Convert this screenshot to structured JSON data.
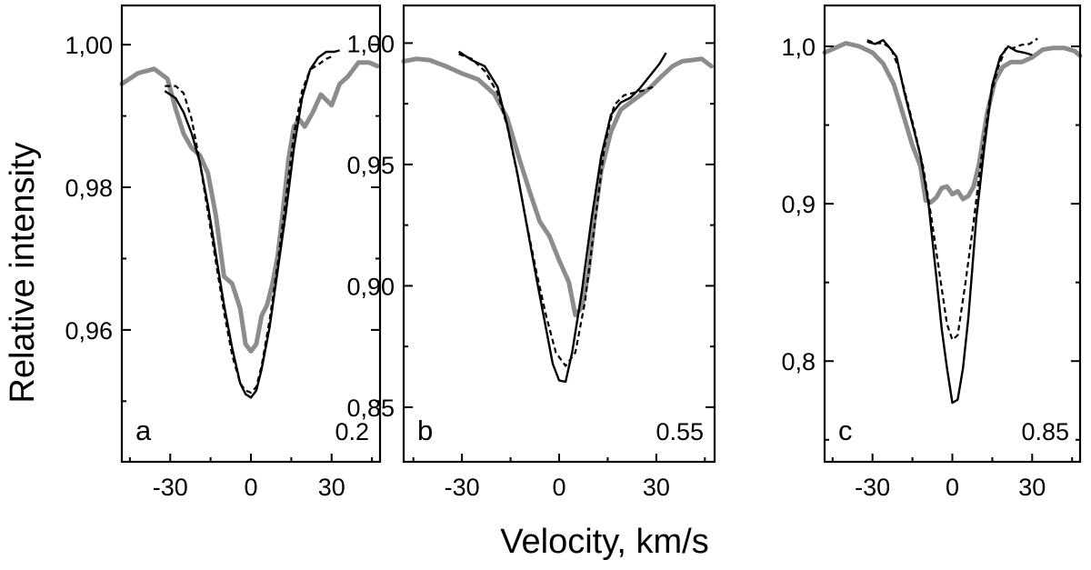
{
  "ylabel": "Relative intensity",
  "xlabel": "Velocity, km/s",
  "chart_data": [
    {
      "type": "line",
      "panel": "a",
      "phase": "0.2",
      "xlim": [
        -48,
        48
      ],
      "ylim": [
        0.9415,
        1.0055
      ],
      "xticks": [
        -30,
        0,
        30
      ],
      "xtick_labels": [
        "-30",
        "0",
        "30"
      ],
      "yticks": [
        0.96,
        0.98,
        1.0
      ],
      "ytick_labels": [
        "0,96",
        "0,98",
        "1,00"
      ],
      "yticks_minor": [
        0.95,
        0.97,
        0.99
      ],
      "series": [
        {
          "style": "gray-thick",
          "x": [
            -48,
            -42,
            -36,
            -31,
            -28,
            -25,
            -22,
            -19,
            -16,
            -13,
            -10,
            -7,
            -4,
            -2,
            0,
            2,
            4,
            6,
            8,
            10,
            12,
            14,
            16,
            18,
            20,
            23,
            26,
            30,
            33,
            36,
            40,
            44,
            47
          ],
          "y": [
            0.9945,
            0.996,
            0.9966,
            0.9952,
            0.991,
            0.9875,
            0.9855,
            0.9845,
            0.982,
            0.976,
            0.9675,
            0.9665,
            0.963,
            0.958,
            0.957,
            0.958,
            0.962,
            0.9635,
            0.9665,
            0.9705,
            0.977,
            0.984,
            0.9885,
            0.9895,
            0.9885,
            0.9905,
            0.993,
            0.9915,
            0.9945,
            0.9955,
            0.9975,
            0.9975,
            0.997
          ]
        },
        {
          "style": "black-solid",
          "x": [
            -32,
            -28,
            -25,
            -22,
            -19,
            -16,
            -13,
            -10,
            -7,
            -4,
            -2,
            0,
            2,
            4,
            7,
            10,
            13,
            16,
            19,
            22,
            25,
            28,
            31,
            33
          ],
          "y": [
            0.9935,
            0.9925,
            0.9905,
            0.9875,
            0.9835,
            0.9775,
            0.9705,
            0.9635,
            0.9575,
            0.9525,
            0.951,
            0.9505,
            0.9515,
            0.9545,
            0.9605,
            0.9685,
            0.9765,
            0.9855,
            0.9925,
            0.9965,
            0.9982,
            0.999,
            0.999,
            0.9992
          ]
        },
        {
          "style": "black-dashed",
          "x": [
            -32,
            -28,
            -25,
            -22,
            -19,
            -16,
            -13,
            -10,
            -7,
            -4,
            -2,
            0,
            2,
            4,
            7,
            10,
            13,
            16,
            19,
            22,
            25,
            28,
            31
          ],
          "y": [
            0.9942,
            0.9942,
            0.9932,
            0.9895,
            0.9835,
            0.9765,
            0.9695,
            0.9625,
            0.9565,
            0.9525,
            0.9515,
            0.9512,
            0.952,
            0.955,
            0.9615,
            0.9695,
            0.9785,
            0.9875,
            0.9935,
            0.9965,
            0.9972,
            0.998,
            0.9985
          ]
        }
      ]
    },
    {
      "type": "line",
      "panel": "b",
      "phase": "0.55",
      "xlim": [
        -48,
        48
      ],
      "ylim": [
        0.8275,
        1.0155
      ],
      "xticks": [
        -30,
        0,
        30
      ],
      "xtick_labels": [
        "-30",
        "0",
        "30"
      ],
      "yticks": [
        0.85,
        0.9,
        0.95,
        1.0
      ],
      "ytick_labels": [
        "0,85",
        "0,90",
        "0,95",
        "1,00"
      ],
      "yticks_minor": [
        0.875,
        0.925,
        0.975
      ],
      "series": [
        {
          "style": "gray-thick",
          "x": [
            -48,
            -44,
            -40,
            -35,
            -30,
            -25,
            -20,
            -16,
            -12,
            -9,
            -6,
            -3,
            0,
            3,
            5,
            7,
            9,
            11,
            13,
            16,
            19,
            22,
            25,
            28,
            31,
            35,
            38,
            41,
            44,
            47
          ],
          "y": [
            0.9925,
            0.9935,
            0.993,
            0.9905,
            0.9875,
            0.985,
            0.979,
            0.969,
            0.951,
            0.9385,
            0.9265,
            0.9205,
            0.9105,
            0.9015,
            0.888,
            0.891,
            0.9055,
            0.9285,
            0.9475,
            0.9635,
            0.9725,
            0.9755,
            0.9785,
            0.9815,
            0.9855,
            0.9905,
            0.9925,
            0.993,
            0.9935,
            0.9905
          ]
        },
        {
          "style": "black-solid",
          "x": [
            -31,
            -27,
            -23,
            -19,
            -16,
            -13,
            -10,
            -7,
            -4,
            -2,
            0,
            2,
            4,
            7,
            10,
            13,
            16,
            19,
            22,
            25,
            28,
            31,
            33
          ],
          "y": [
            0.9965,
            0.993,
            0.9905,
            0.982,
            0.966,
            0.947,
            0.925,
            0.903,
            0.882,
            0.868,
            0.861,
            0.8605,
            0.8725,
            0.8975,
            0.9275,
            0.9535,
            0.9705,
            0.9755,
            0.9775,
            0.9815,
            0.9865,
            0.9915,
            0.996
          ]
        },
        {
          "style": "black-dashed",
          "x": [
            -31,
            -27,
            -23,
            -19,
            -16,
            -13,
            -10,
            -7,
            -4,
            -1,
            2,
            5,
            8,
            11,
            14,
            17,
            20,
            23,
            26,
            29
          ],
          "y": [
            0.9955,
            0.9935,
            0.9885,
            0.9795,
            0.9655,
            0.9465,
            0.9255,
            0.9055,
            0.8875,
            0.8725,
            0.867,
            0.8725,
            0.8935,
            0.9255,
            0.9575,
            0.9745,
            0.9785,
            0.9795,
            0.9805,
            0.982
          ]
        }
      ]
    },
    {
      "type": "line",
      "panel": "c",
      "phase": "0.85",
      "xlim": [
        -48,
        48
      ],
      "ylim": [
        0.736,
        1.026
      ],
      "xticks": [
        -30,
        0,
        30
      ],
      "xtick_labels": [
        "-30",
        "0",
        "30"
      ],
      "yticks": [
        0.8,
        0.9,
        1.0
      ],
      "ytick_labels": [
        "0,8",
        "0,9",
        "1,0"
      ],
      "yticks_minor": [
        0.75,
        0.85,
        0.95
      ],
      "series": [
        {
          "style": "gray-thick",
          "x": [
            -48,
            -44,
            -40,
            -35,
            -30,
            -26,
            -22,
            -18,
            -15,
            -12,
            -10,
            -8,
            -6,
            -4,
            -2,
            0,
            2,
            4,
            6,
            8,
            10,
            13,
            16,
            19,
            22,
            26,
            30,
            34,
            38,
            42,
            46,
            48
          ],
          "y": [
            0.996,
            0.999,
            1.002,
            1.0,
            0.996,
            0.989,
            0.976,
            0.954,
            0.937,
            0.924,
            0.902,
            0.901,
            0.904,
            0.91,
            0.911,
            0.906,
            0.908,
            0.903,
            0.905,
            0.911,
            0.925,
            0.957,
            0.978,
            0.987,
            0.99,
            0.99,
            0.993,
            0.998,
            0.999,
            0.999,
            0.997,
            0.994
          ]
        },
        {
          "style": "black-solid",
          "x": [
            -32,
            -29,
            -26,
            -24,
            -21,
            -18,
            -15,
            -12,
            -9,
            -6,
            -4,
            -2,
            0,
            2,
            4,
            6,
            9,
            12,
            15,
            18,
            21,
            24,
            27,
            30
          ],
          "y": [
            1.003,
            1.0015,
            1.004,
            1.0,
            0.9935,
            0.9705,
            0.9505,
            0.9305,
            0.9005,
            0.8535,
            0.8205,
            0.7955,
            0.7735,
            0.7755,
            0.7955,
            0.8275,
            0.8905,
            0.9355,
            0.9755,
            0.9935,
            1.0,
            0.997,
            0.996,
            0.9945
          ]
        },
        {
          "style": "black-dashed",
          "x": [
            -32,
            -29,
            -26,
            -23,
            -20,
            -17,
            -14,
            -11,
            -8,
            -5,
            -2,
            0,
            2,
            5,
            8,
            11,
            14,
            17,
            20,
            23,
            26,
            29,
            32
          ],
          "y": [
            1.004,
            1.002,
            1.002,
            0.9985,
            0.9855,
            0.9655,
            0.9455,
            0.9235,
            0.8925,
            0.8575,
            0.8235,
            0.8135,
            0.8165,
            0.8505,
            0.8885,
            0.9305,
            0.9655,
            0.9855,
            0.9985,
            0.999,
            1.001,
            1.0015,
            1.005
          ]
        }
      ]
    }
  ]
}
